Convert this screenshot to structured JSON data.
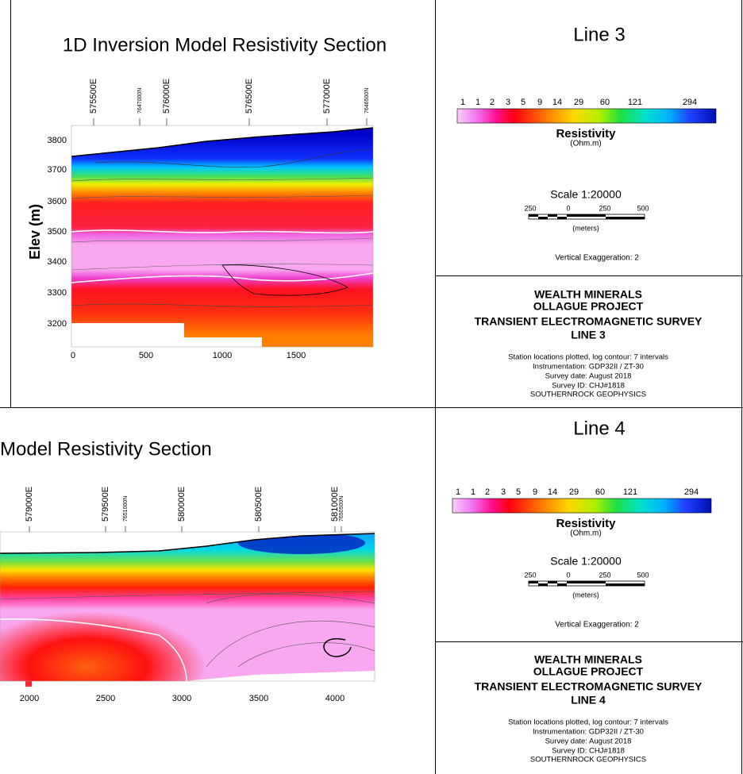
{
  "panels": [
    {
      "section": {
        "title": "1D Inversion Model Resistivity Section",
        "stations": [
          "575500E",
          "7647000N",
          "576000E",
          "576500E",
          "577000E",
          "7646500N"
        ],
        "y_axis_label": "Elev (m)",
        "y_ticks": [
          3800,
          3700,
          3600,
          3500,
          3400,
          3300,
          3200
        ],
        "x_ticks": [
          0,
          500,
          1000,
          1500
        ]
      },
      "legend": {
        "heading": "Line 3",
        "color_scale_labels": [
          1,
          1,
          2,
          3,
          5,
          9,
          14,
          29,
          60,
          121,
          294
        ],
        "color_scale_title": "Resistivity",
        "color_scale_units": "(Ohm.m)",
        "scale": "Scale 1:20000",
        "scale_bar_labels": [
          250,
          0,
          250,
          500
        ],
        "scale_bar_units": "(meters)",
        "vertical_exaggeration": "Vertical Exaggeration: 2"
      },
      "title_block": {
        "lines": [
          "WEALTH MINERALS",
          "OLLAGUE PROJECT",
          "TRANSIENT ELECTROMAGNETIC SURVEY",
          "LINE 3"
        ],
        "details": [
          "Station locations plotted, log contour: 7 intervals",
          "Instrumentation: GDP32II / ZT-30",
          "Survey date: August 2018",
          "Survey ID: CHJ#1818",
          "SOUTHERNROCK GEOPHYSICS"
        ]
      }
    },
    {
      "section": {
        "title": "Model Resistivity Section",
        "stations": [
          "579000E",
          "579500E",
          "7651000N",
          "580000E",
          "580500E",
          "581000E",
          "7650500N"
        ],
        "x_ticks": [
          2000,
          2500,
          3000,
          3500,
          4000
        ]
      },
      "legend": {
        "heading": "Line 4",
        "color_scale_labels": [
          1,
          1,
          2,
          3,
          5,
          9,
          14,
          29,
          60,
          121,
          294
        ],
        "color_scale_title": "Resistivity",
        "color_scale_units": "(Ohm.m)",
        "scale": "Scale 1:20000",
        "scale_bar_labels": [
          250,
          0,
          250,
          500
        ],
        "scale_bar_units": "(meters)",
        "vertical_exaggeration": "Vertical Exaggeration: 2"
      },
      "title_block": {
        "lines": [
          "WEALTH MINERALS",
          "OLLAGUE PROJECT",
          "TRANSIENT ELECTROMAGNETIC SURVEY",
          "LINE 4"
        ],
        "details": [
          "Station locations plotted, log contour: 7 intervals",
          "Instrumentation: GDP32II / ZT-30",
          "Survey date: August 2018",
          "Survey ID: CHJ#1818",
          "SOUTHERNROCK GEOPHYSICS"
        ]
      }
    }
  ]
}
